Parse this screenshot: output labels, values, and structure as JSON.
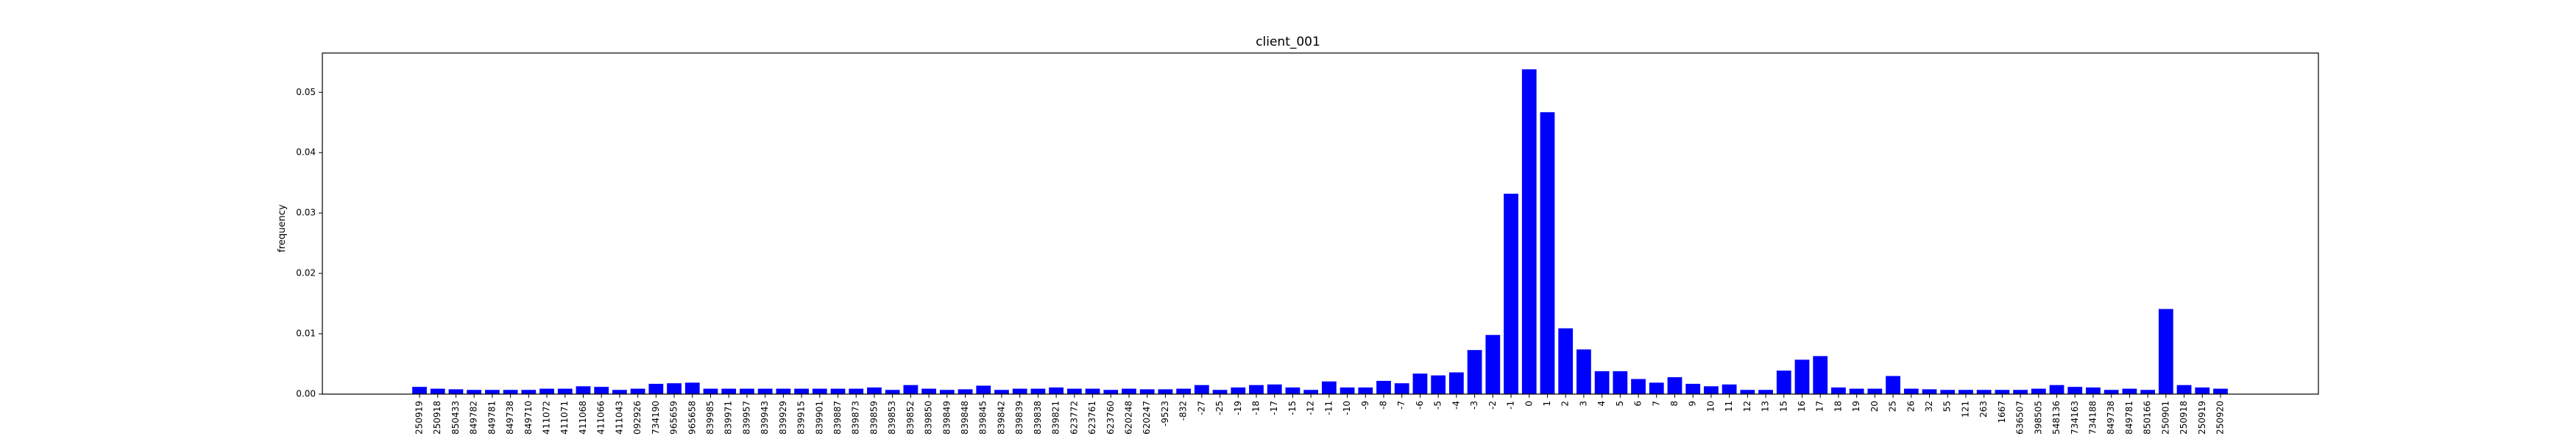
{
  "chart_data": {
    "type": "bar",
    "title": "client_001",
    "xlabel": "",
    "ylabel": "frequency",
    "ylim": [
      0,
      0.0565
    ],
    "yticks": [
      0.0,
      0.01,
      0.02,
      0.03,
      0.04,
      0.05
    ],
    "ytick_labels": [
      "0.00",
      "0.01",
      "0.02",
      "0.03",
      "0.04",
      "0.05"
    ],
    "grid": false,
    "bar_color": "#0000ff",
    "categories": [
      "250919",
      "250918",
      "850433",
      "849782",
      "849781",
      "849738",
      "849710",
      "411072",
      "411071",
      "411068",
      "411066",
      "411043",
      "092926",
      "734190",
      "965659",
      "965658",
      "839985",
      "839971",
      "839957",
      "839943",
      "839929",
      "839915",
      "839901",
      "839887",
      "839873",
      "839859",
      "839853",
      "839852",
      "839850",
      "839849",
      "839848",
      "839845",
      "839842",
      "839839",
      "839838",
      "839821",
      "623772",
      "623761",
      "623760",
      "620248",
      "620247",
      "-9523",
      "-832",
      "-27",
      "-25",
      "-19",
      "-18",
      "-17",
      "-15",
      "-12",
      "-11",
      "-10",
      "-9",
      "-8",
      "-7",
      "-6",
      "-5",
      "-4",
      "-3",
      "-2",
      "-1",
      "0",
      "1",
      "2",
      "3",
      "4",
      "5",
      "6",
      "7",
      "8",
      "9",
      "10",
      "11",
      "12",
      "13",
      "15",
      "16",
      "17",
      "18",
      "19",
      "20",
      "25",
      "26",
      "32",
      "55",
      "121",
      "263",
      "1667",
      "636507",
      "398505",
      "548136",
      "734163",
      "734188",
      "849738",
      "849781",
      "850166",
      "250901",
      "250918",
      "250919",
      "250920"
    ],
    "values": [
      0.0012,
      0.0009,
      0.0008,
      0.0007,
      0.0007,
      0.0007,
      0.0007,
      0.0009,
      0.0009,
      0.0013,
      0.0012,
      0.0007,
      0.0009,
      0.0017,
      0.0018,
      0.0019,
      0.0009,
      0.0009,
      0.0009,
      0.0009,
      0.0009,
      0.0009,
      0.0009,
      0.0009,
      0.0009,
      0.0011,
      0.0007,
      0.0015,
      0.0009,
      0.0007,
      0.0008,
      0.0014,
      0.0007,
      0.0009,
      0.0009,
      0.0011,
      0.0009,
      0.0009,
      0.0007,
      0.0009,
      0.0008,
      0.0008,
      0.0009,
      0.0015,
      0.0007,
      0.0011,
      0.0015,
      0.0016,
      0.0011,
      0.0007,
      0.0021,
      0.0011,
      0.0011,
      0.0022,
      0.0018,
      0.0034,
      0.0031,
      0.0036,
      0.0073,
      0.0098,
      0.0332,
      0.0538,
      0.0467,
      0.0109,
      0.0074,
      0.0038,
      0.0038,
      0.0025,
      0.0019,
      0.0028,
      0.0017,
      0.0013,
      0.0016,
      0.0007,
      0.0007,
      0.0039,
      0.0057,
      0.0063,
      0.0011,
      0.0009,
      0.0009,
      0.003,
      0.0009,
      0.0008,
      0.0007,
      0.0007,
      0.0007,
      0.0007,
      0.0007,
      0.0009,
      0.0015,
      0.0012,
      0.0011,
      0.0007,
      0.0009,
      0.0007,
      0.0141,
      0.0015,
      0.0011,
      0.0009
    ]
  }
}
